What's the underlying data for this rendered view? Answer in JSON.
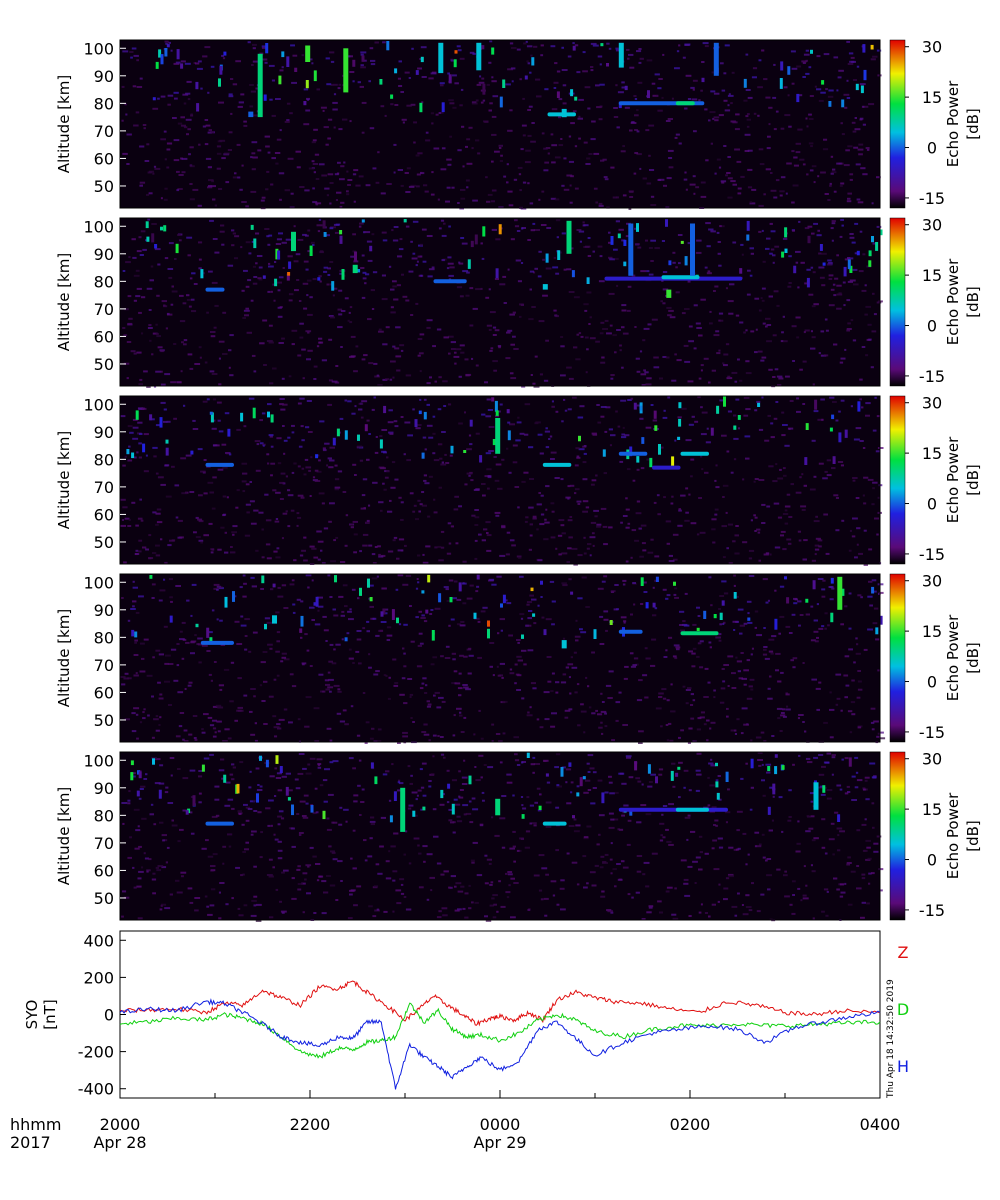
{
  "chart_data": [
    {
      "type": "heatmap",
      "panel": 1,
      "ylabel": "Altitude [km]",
      "yticks": [
        50,
        60,
        70,
        80,
        90,
        100
      ],
      "ylim": [
        42,
        103
      ],
      "xlim_hours": [
        20,
        28
      ],
      "colorbar": {
        "label": "Echo Power [dB]",
        "ticks": [
          -15,
          0,
          15,
          30
        ],
        "range": [
          -18,
          32
        ]
      },
      "echoes": [
        {
          "t": 21.45,
          "alt_from": 75,
          "alt_to": 98,
          "db": 10
        },
        {
          "t": 21.35,
          "alt_from": 75,
          "alt_to": 77,
          "db": 0
        },
        {
          "t": 21.95,
          "alt_from": 95,
          "alt_to": 101,
          "db": 15
        },
        {
          "t": 22.35,
          "alt_from": 84,
          "alt_to": 100,
          "db": 15
        },
        {
          "t": 23.35,
          "alt_from": 91,
          "alt_to": 102,
          "db": 5
        },
        {
          "t": 23.75,
          "alt_from": 92,
          "alt_to": 102,
          "db": 5
        },
        {
          "t": 24.65,
          "alt_from": 75,
          "alt_to": 78,
          "db": 5
        },
        {
          "t": 25.25,
          "alt_from": 93,
          "alt_to": 102,
          "db": 5
        },
        {
          "t_from": 25.25,
          "t_to": 26.15,
          "alt": 80,
          "db": 0
        },
        {
          "t_from": 25.85,
          "t_to": 26.05,
          "alt": 80,
          "db": 10
        },
        {
          "t": 26.25,
          "alt_from": 90,
          "alt_to": 102,
          "db": 0
        },
        {
          "t_from": 24.5,
          "t_to": 24.8,
          "alt": 76,
          "db": 5
        }
      ],
      "echoes_scatter_dB_range": [
        -15,
        15
      ]
    },
    {
      "type": "heatmap",
      "panel": 2,
      "ylabel": "Altitude [km]",
      "yticks": [
        50,
        60,
        70,
        80,
        90,
        100
      ],
      "ylim": [
        42,
        103
      ],
      "xlim_hours": [
        20,
        28
      ],
      "colorbar": {
        "label": "Echo Power [dB]",
        "ticks": [
          -15,
          0,
          15,
          30
        ],
        "range": [
          -18,
          32
        ]
      },
      "echoes": [
        {
          "t_from": 20.9,
          "t_to": 21.1,
          "alt": 77,
          "db": 0
        },
        {
          "t": 21.8,
          "alt_from": 91,
          "alt_to": 98,
          "db": 10
        },
        {
          "t": 22.45,
          "alt_from": 83,
          "alt_to": 86,
          "db": 10
        },
        {
          "t_from": 23.3,
          "t_to": 23.65,
          "alt": 80,
          "db": 0
        },
        {
          "t": 24.45,
          "alt_from": 77,
          "alt_to": 79,
          "db": 5
        },
        {
          "t": 24.7,
          "alt_from": 90,
          "alt_to": 102,
          "db": 10
        },
        {
          "t": 25.35,
          "alt_from": 82,
          "alt_to": 101,
          "db": 0
        },
        {
          "t_from": 25.1,
          "t_to": 26.55,
          "alt": 81,
          "db": -5
        },
        {
          "t_from": 25.7,
          "t_to": 26.1,
          "alt": 81.5,
          "db": 5
        },
        {
          "t": 26.0,
          "alt_from": 82,
          "alt_to": 101,
          "db": 0
        },
        {
          "t": 25.75,
          "alt_from": 74,
          "alt_to": 77,
          "db": 15
        }
      ],
      "echoes_scatter_dB_range": [
        -15,
        15
      ]
    },
    {
      "type": "heatmap",
      "panel": 3,
      "ylabel": "Altitude [km]",
      "yticks": [
        50,
        60,
        70,
        80,
        90,
        100
      ],
      "ylim": [
        42,
        103
      ],
      "xlim_hours": [
        20,
        28
      ],
      "colorbar": {
        "label": "Echo Power [dB]",
        "ticks": [
          -15,
          0,
          15,
          30
        ],
        "range": [
          -18,
          32
        ]
      },
      "echoes": [
        {
          "t_from": 20.9,
          "t_to": 21.2,
          "alt": 78,
          "db": 0
        },
        {
          "t": 23.95,
          "alt_from": 82,
          "alt_to": 95,
          "db": 10
        },
        {
          "t_from": 24.45,
          "t_to": 24.75,
          "alt": 78,
          "db": 5
        },
        {
          "t_from": 25.25,
          "t_to": 25.55,
          "alt": 82,
          "db": 0
        },
        {
          "t_from": 25.9,
          "t_to": 26.2,
          "alt": 82,
          "db": 5
        },
        {
          "t_from": 25.6,
          "t_to": 25.9,
          "alt": 77,
          "db": -5
        }
      ],
      "echoes_scatter_dB_range": [
        -15,
        15
      ]
    },
    {
      "type": "heatmap",
      "panel": 4,
      "ylabel": "Altitude [km]",
      "yticks": [
        50,
        60,
        70,
        80,
        90,
        100
      ],
      "ylim": [
        42,
        103
      ],
      "xlim_hours": [
        20,
        28
      ],
      "colorbar": {
        "label": "Echo Power [dB]",
        "ticks": [
          -15,
          0,
          15,
          30
        ],
        "range": [
          -18,
          32
        ]
      },
      "echoes": [
        {
          "t_from": 20.85,
          "t_to": 21.2,
          "alt": 78,
          "db": 0
        },
        {
          "t": 21.6,
          "alt_from": 85,
          "alt_to": 88,
          "db": 5
        },
        {
          "t": 24.65,
          "alt_from": 76,
          "alt_to": 79,
          "db": 5
        },
        {
          "t_from": 25.25,
          "t_to": 25.5,
          "alt": 82,
          "db": 0
        },
        {
          "t_from": 25.9,
          "t_to": 26.3,
          "alt": 81.5,
          "db": 10
        },
        {
          "t": 27.55,
          "alt_from": 90,
          "alt_to": 102,
          "db": 15
        }
      ],
      "echoes_scatter_dB_range": [
        -15,
        15
      ]
    },
    {
      "type": "heatmap",
      "panel": 5,
      "ylabel": "Altitude [km]",
      "yticks": [
        50,
        60,
        70,
        80,
        90,
        100
      ],
      "ylim": [
        42,
        103
      ],
      "xlim_hours": [
        20,
        28
      ],
      "colorbar": {
        "label": "Echo Power [dB]",
        "ticks": [
          -15,
          0,
          15,
          30
        ],
        "range": [
          -18,
          32
        ]
      },
      "echoes": [
        {
          "t_from": 20.9,
          "t_to": 21.2,
          "alt": 77,
          "db": 0
        },
        {
          "t": 22.95,
          "alt_from": 74,
          "alt_to": 90,
          "db": 10
        },
        {
          "t": 23.95,
          "alt_from": 80,
          "alt_to": 86,
          "db": 10
        },
        {
          "t_from": 24.45,
          "t_to": 24.7,
          "alt": 77,
          "db": 5
        },
        {
          "t_from": 25.25,
          "t_to": 26.4,
          "alt": 82,
          "db": -5
        },
        {
          "t_from": 25.85,
          "t_to": 26.2,
          "alt": 82,
          "db": 5
        },
        {
          "t": 27.3,
          "alt_from": 82,
          "alt_to": 92,
          "db": 5
        }
      ],
      "echoes_scatter_dB_range": [
        -15,
        15
      ]
    },
    {
      "type": "line",
      "panel": 6,
      "ylabel": "SYO [nT]",
      "yticks": [
        -400,
        -200,
        0,
        200,
        400
      ],
      "ylim": [
        -450,
        450
      ],
      "xlim_hours": [
        20,
        28
      ],
      "series": [
        {
          "name": "Z",
          "color": "#e01010",
          "t": [
            20.0,
            20.3,
            20.6,
            20.9,
            21.1,
            21.3,
            21.5,
            21.7,
            21.9,
            22.1,
            22.3,
            22.45,
            22.6,
            22.8,
            23.0,
            23.15,
            23.3,
            23.45,
            23.6,
            23.75,
            23.9,
            24.0,
            24.15,
            24.3,
            24.45,
            24.6,
            24.8,
            25.0,
            25.2,
            25.5,
            25.8,
            26.1,
            26.4,
            26.7,
            27.0,
            27.3,
            27.6,
            28.0
          ],
          "values": [
            20,
            25,
            30,
            10,
            60,
            50,
            130,
            90,
            50,
            150,
            140,
            180,
            120,
            50,
            -30,
            30,
            100,
            50,
            0,
            -50,
            -20,
            -10,
            -30,
            10,
            -30,
            80,
            120,
            90,
            70,
            60,
            30,
            10,
            70,
            50,
            10,
            0,
            20,
            10
          ]
        },
        {
          "name": "D",
          "color": "#10d010",
          "t": [
            20.0,
            20.3,
            20.6,
            20.9,
            21.1,
            21.3,
            21.5,
            21.7,
            21.9,
            22.1,
            22.3,
            22.45,
            22.6,
            22.75,
            22.9,
            23.05,
            23.2,
            23.35,
            23.5,
            23.65,
            23.8,
            24.0,
            24.2,
            24.4,
            24.6,
            24.8,
            25.0,
            25.3,
            25.6,
            25.9,
            26.2,
            26.5,
            26.8,
            27.1,
            27.4,
            27.7,
            28.0
          ],
          "values": [
            -50,
            -40,
            -20,
            -30,
            0,
            -20,
            -50,
            -120,
            -200,
            -230,
            -180,
            -190,
            -150,
            -140,
            -120,
            60,
            -40,
            20,
            -80,
            -120,
            -110,
            -140,
            -100,
            -30,
            0,
            -30,
            -90,
            -120,
            -80,
            -60,
            -60,
            -50,
            -60,
            -60,
            -50,
            -45,
            -40
          ]
        },
        {
          "name": "H",
          "color": "#1020e0",
          "t": [
            20.0,
            20.3,
            20.6,
            20.9,
            21.1,
            21.3,
            21.5,
            21.7,
            21.9,
            22.1,
            22.3,
            22.45,
            22.6,
            22.75,
            22.9,
            23.05,
            23.2,
            23.35,
            23.5,
            23.65,
            23.8,
            24.0,
            24.2,
            24.4,
            24.6,
            24.8,
            25.0,
            25.3,
            25.6,
            25.9,
            26.2,
            26.5,
            26.8,
            27.1,
            27.4,
            27.7,
            28.0
          ],
          "values": [
            10,
            30,
            20,
            70,
            60,
            10,
            -50,
            -120,
            -150,
            -170,
            -120,
            -130,
            -40,
            -40,
            -400,
            -160,
            -230,
            -280,
            -340,
            -280,
            -230,
            -300,
            -250,
            -80,
            -40,
            -130,
            -220,
            -150,
            -100,
            -80,
            -60,
            -80,
            -150,
            -70,
            -40,
            -10,
            10
          ]
        }
      ]
    }
  ],
  "x_axis": {
    "row_label_top": "hhmm",
    "row_label_bottom": "2017",
    "ticks": [
      {
        "t": 20,
        "label": "2000",
        "date": "Apr 28"
      },
      {
        "t": 22,
        "label": "2200",
        "date": ""
      },
      {
        "t": 24,
        "label": "0000",
        "date": "Apr 29"
      },
      {
        "t": 26,
        "label": "0200",
        "date": ""
      },
      {
        "t": 28,
        "label": "0400",
        "date": ""
      }
    ]
  },
  "timestamp": "Thu Apr 18 14:32:50 2019"
}
